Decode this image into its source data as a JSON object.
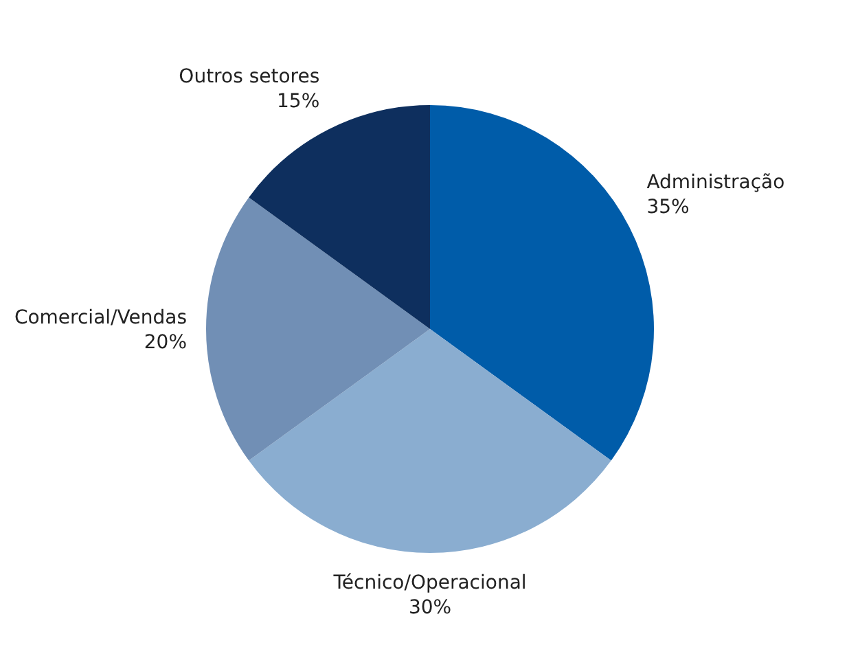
{
  "chart_data": {
    "type": "pie",
    "categories": [
      "Administração",
      "Técnico/Operacional",
      "Comercial/Vendas",
      "Outros setores"
    ],
    "values": [
      35,
      30,
      20,
      15
    ],
    "value_labels": [
      "35%",
      "30%",
      "20%",
      "15%"
    ],
    "colors": [
      "#005ca9",
      "#8aadd0",
      "#718fb5",
      "#0e2f5e"
    ],
    "legend": false
  }
}
